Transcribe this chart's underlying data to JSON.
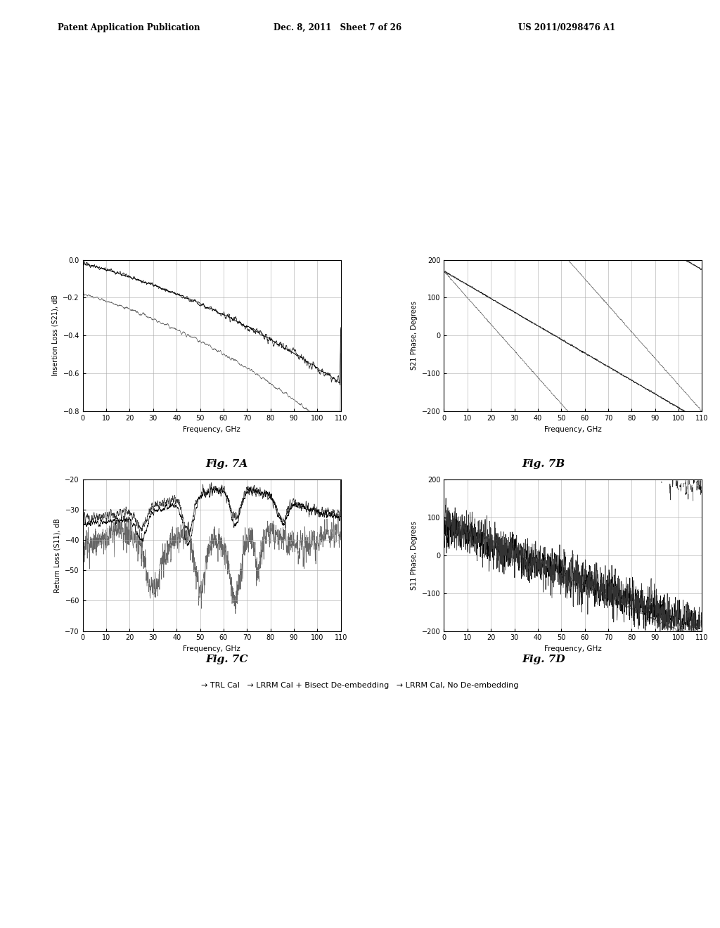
{
  "header_left": "Patent Application Publication",
  "header_mid": "Dec. 8, 2011   Sheet 7 of 26",
  "header_right": "US 2011/0298476 A1",
  "fig_labels": [
    "Fig. 7A",
    "Fig. 7B",
    "Fig. 7C",
    "Fig. 7D"
  ],
  "legend_str": "→ TRL Cal   → LRRM Cal + Bisect De-embedding   → LRRM Cal, No De-embedding",
  "bg_color": "#ffffff",
  "plot_bg": "#ffffff",
  "grid_color": "#aaaaaa",
  "axes": {
    "7A": {
      "ylabel": "Insertion Loss (S21), dB",
      "xlabel": "Frequency, GHz",
      "xlim": [
        0,
        110
      ],
      "ylim": [
        -0.8,
        0.0
      ],
      "yticks": [
        0.0,
        -0.2,
        -0.4,
        -0.6,
        -0.8
      ],
      "xticks": [
        0,
        10,
        20,
        30,
        40,
        50,
        60,
        70,
        80,
        90,
        100,
        110
      ]
    },
    "7B": {
      "ylabel": "S21 Phase, Degrees",
      "xlabel": "Frequency, GHz",
      "xlim": [
        0,
        110
      ],
      "ylim": [
        -200,
        200
      ],
      "yticks": [
        -200,
        -100,
        0,
        100,
        200
      ],
      "xticks": [
        0,
        10,
        20,
        30,
        40,
        50,
        60,
        70,
        80,
        90,
        100,
        110
      ]
    },
    "7C": {
      "ylabel": "Return Loss (S11), dB",
      "xlabel": "Frequency, GHz",
      "xlim": [
        0,
        110
      ],
      "ylim": [
        -70,
        -20
      ],
      "yticks": [
        -70,
        -60,
        -50,
        -40,
        -30,
        -20
      ],
      "xticks": [
        0,
        10,
        20,
        30,
        40,
        50,
        60,
        70,
        80,
        90,
        100,
        110
      ]
    },
    "7D": {
      "ylabel": "S11 Phase, Degrees",
      "xlabel": "Frequency, GHz",
      "xlim": [
        0,
        110
      ],
      "ylim": [
        -200,
        200
      ],
      "yticks": [
        -200,
        -100,
        0,
        100,
        200
      ],
      "xticks": [
        0,
        10,
        20,
        30,
        40,
        50,
        60,
        70,
        80,
        90,
        100,
        110
      ]
    }
  }
}
